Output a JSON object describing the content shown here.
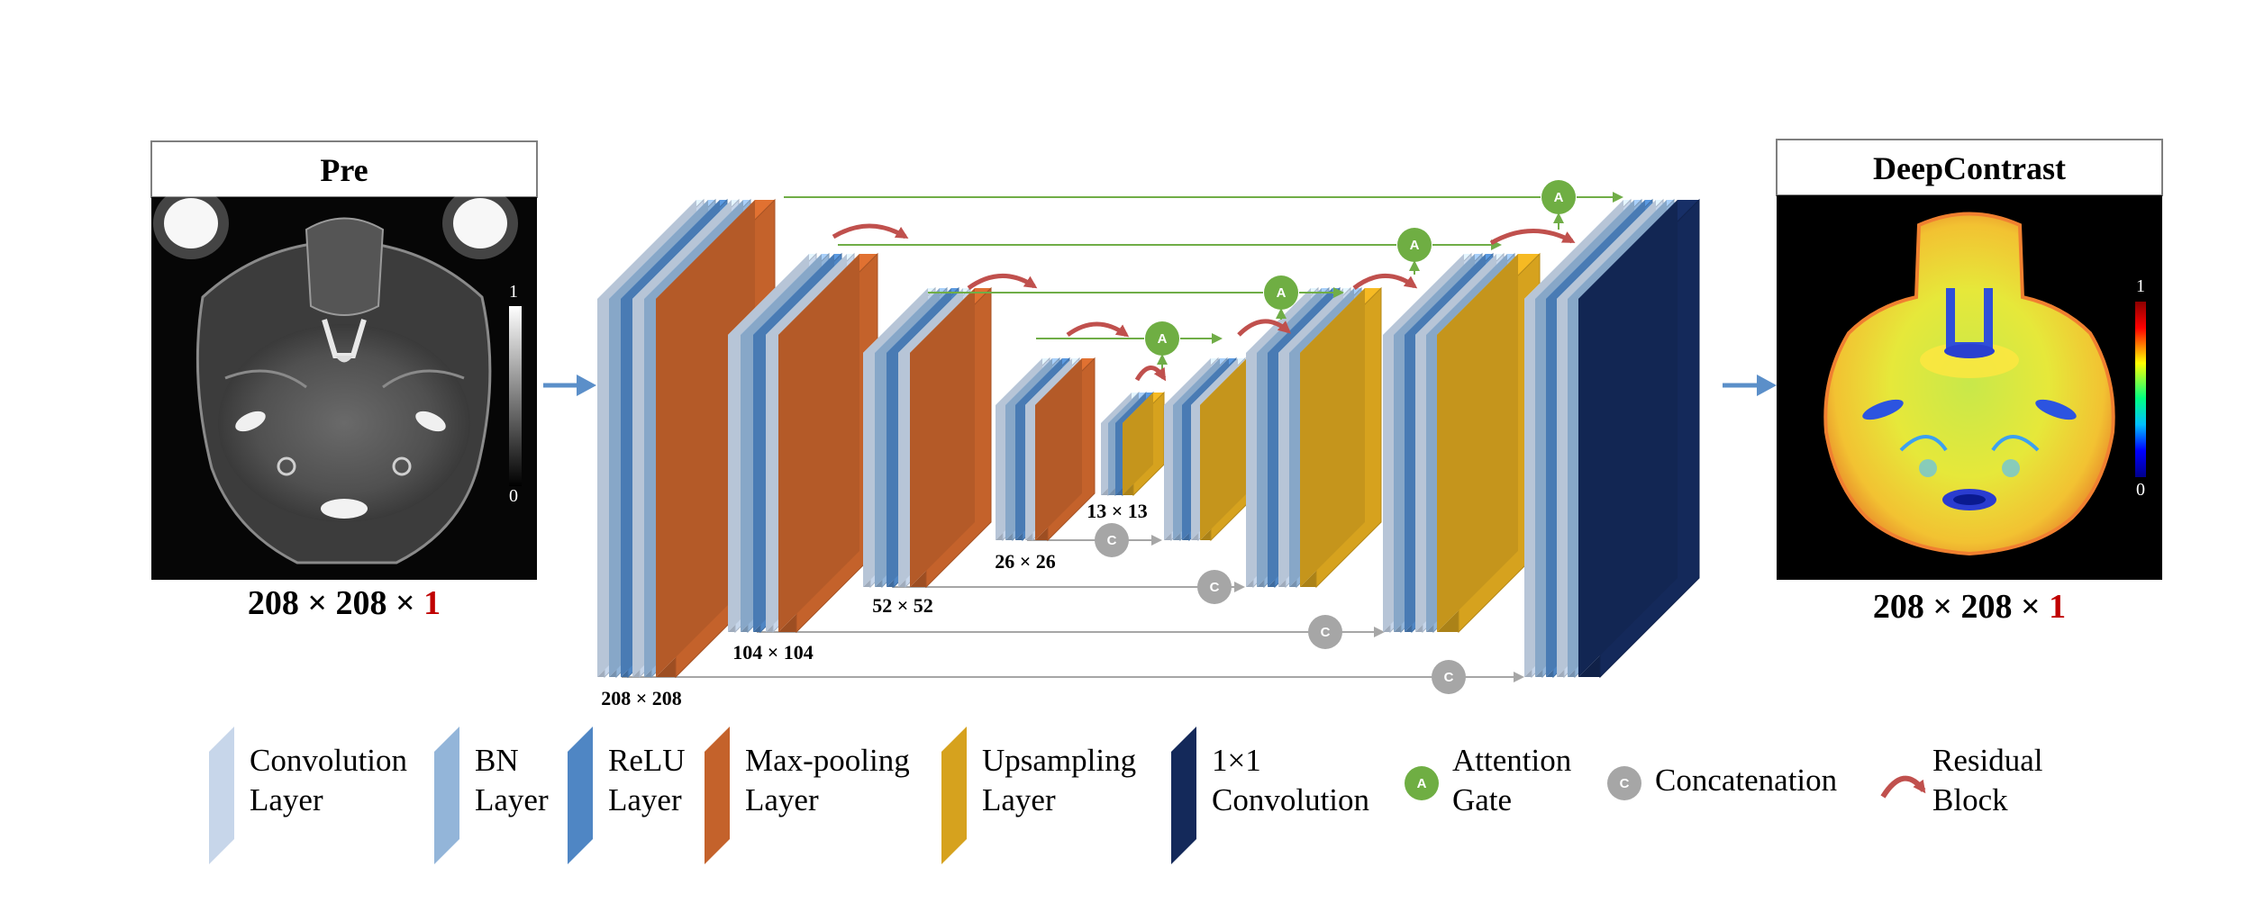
{
  "colors": {
    "conv": "#c7d6ea",
    "bn": "#93b5d9",
    "relu": "#4f86c4",
    "maxpool": "#c4622b",
    "upsample": "#d6a21e",
    "conv1x1": "#14295a",
    "attention": "#6fae43",
    "concat": "#a6a6a6",
    "residual": "#c0504d",
    "arrow": "#5b8fc9",
    "skip_line": "#a6a6a6",
    "gate_line": "#70ad47",
    "channel_highlight": "#c00000"
  },
  "input_panel": {
    "title": "Pre",
    "dims_prefix": "208 × 208 × ",
    "dims_channel": "1",
    "colorbar_max": "1",
    "colorbar_min": "0"
  },
  "output_panel": {
    "title": "DeepContrast",
    "dims_prefix": "208 × 208 × ",
    "dims_channel": "1",
    "colorbar_max": "1",
    "colorbar_min": "0"
  },
  "size_labels": {
    "s208": "208 × 208",
    "s104": "104 × 104",
    "s52": "52 × 52",
    "s26": "26 × 26",
    "s13": "13 × 13"
  },
  "badges": {
    "attention": "A",
    "concat": "C"
  },
  "legend": [
    {
      "icon": "conv",
      "line1": "Convolution",
      "line2": "Layer"
    },
    {
      "icon": "bn",
      "line1": "BN",
      "line2": "Layer"
    },
    {
      "icon": "relu",
      "line1": "ReLU",
      "line2": "Layer"
    },
    {
      "icon": "maxpool",
      "line1": "Max-pooling",
      "line2": "Layer"
    },
    {
      "icon": "upsample",
      "line1": "Upsampling",
      "line2": "Layer"
    },
    {
      "icon": "conv1x1",
      "line1": "1×1",
      "line2": "Convolution"
    },
    {
      "icon": "attention",
      "line1": "Attention",
      "line2": "Gate"
    },
    {
      "icon": "concat",
      "line1": "Concatenation",
      "line2": ""
    },
    {
      "icon": "residual",
      "line1": "Residual",
      "line2": "Block"
    }
  ]
}
